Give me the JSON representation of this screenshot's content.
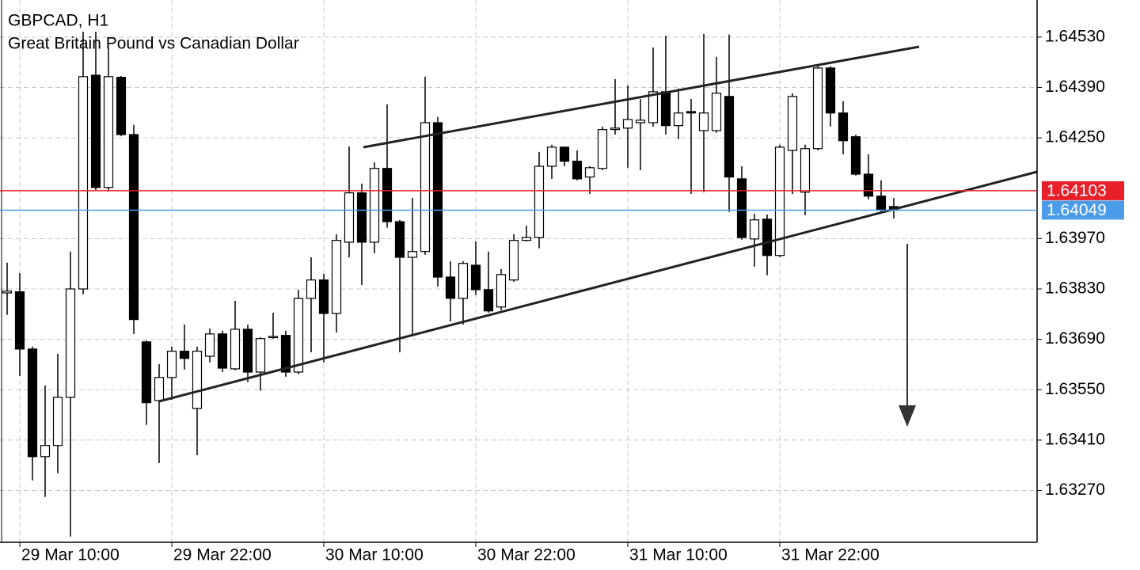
{
  "chart_data": {
    "type": "candlestick",
    "title": "GBPCAD, H1",
    "subtitle": "Great Britain Pound vs Canadian Dollar",
    "categories": [
      null,
      "29 Mar 10:00",
      null,
      null,
      null,
      null,
      null,
      null,
      null,
      null,
      null,
      null,
      null,
      "29 Mar 22:00",
      null,
      null,
      null,
      null,
      null,
      null,
      null,
      null,
      null,
      null,
      null,
      "30 Mar 10:00",
      null,
      null,
      null,
      null,
      null,
      null,
      null,
      null,
      null,
      null,
      null,
      "30 Mar 22:00",
      null,
      null,
      null,
      null,
      null,
      null,
      null,
      null,
      null,
      null,
      null,
      "31 Mar 10:00",
      null,
      null,
      null,
      null,
      null,
      null,
      null,
      null,
      null,
      null,
      null,
      "31 Mar 22:00",
      null,
      null,
      null,
      null,
      null,
      null,
      null,
      null,
      null
    ],
    "open": [
      1.63819,
      1.63822,
      1.63663,
      1.63364,
      1.63395,
      1.63529,
      1.6383,
      1.64424,
      1.64112,
      1.64418,
      1.64259,
      1.63683,
      1.6352,
      1.63584,
      1.63657,
      1.63498,
      1.63643,
      1.63705,
      1.63608,
      1.63718,
      1.63599,
      1.63696,
      1.63701,
      1.63599,
      1.63804,
      1.63855,
      1.63762,
      1.6396,
      1.64097,
      1.6396,
      1.64165,
      1.64017,
      1.63918,
      1.63934,
      1.64292,
      1.63863,
      1.63804,
      1.63896,
      1.63828,
      1.6378,
      1.63855,
      1.63965,
      1.63973,
      1.64171,
      1.64224,
      1.64185,
      1.64141,
      1.64165,
      1.64273,
      1.64277,
      1.64292,
      1.64292,
      1.64378,
      1.64284,
      1.64323,
      1.6427,
      1.6427,
      1.64365,
      1.64136,
      1.63969,
      1.64024,
      1.63923,
      1.64215,
      1.64099,
      1.6422,
      1.64444,
      1.64319,
      1.64253,
      1.64149,
      1.64088,
      1.64059
    ],
    "high": [
      1.63903,
      1.63874,
      1.6367,
      1.63562,
      1.6365,
      1.63934,
      1.64545,
      1.64545,
      1.64501,
      1.64422,
      1.64286,
      1.63687,
      1.63621,
      1.6367,
      1.63731,
      1.6367,
      1.6372,
      1.63714,
      1.63797,
      1.63731,
      1.63696,
      1.63764,
      1.63714,
      1.63828,
      1.63918,
      1.63872,
      1.63982,
      1.64226,
      1.64123,
      1.64182,
      1.64343,
      1.64022,
      1.64083,
      1.6442,
      1.64308,
      1.63907,
      1.63907,
      1.63962,
      1.63934,
      1.63885,
      1.63982,
      1.64006,
      1.64211,
      1.64231,
      1.64226,
      1.64215,
      1.64171,
      1.64281,
      1.64413,
      1.64396,
      1.64358,
      1.64501,
      1.64534,
      1.64387,
      1.64358,
      1.64539,
      1.64475,
      1.64537,
      1.64171,
      1.64039,
      1.64037,
      1.64231,
      1.64374,
      1.64231,
      1.64453,
      1.64449,
      1.64352,
      1.64259,
      1.64204,
      1.64132,
      1.64083
    ],
    "low": [
      1.63758,
      1.63588,
      1.63298,
      1.63252,
      1.63318,
      1.63142,
      1.63815,
      1.64105,
      1.64101,
      1.64255,
      1.63705,
      1.63452,
      1.63346,
      1.63522,
      1.63606,
      1.63368,
      1.63626,
      1.63599,
      1.63604,
      1.63571,
      1.63547,
      1.63692,
      1.63586,
      1.63593,
      1.63654,
      1.63626,
      1.63709,
      1.63918,
      1.63841,
      1.63929,
      1.64,
      1.63654,
      1.63698,
      1.63925,
      1.63837,
      1.6374,
      1.63731,
      1.63813,
      1.63764,
      1.63771,
      1.6385,
      1.63962,
      1.63943,
      1.64136,
      1.64171,
      1.64132,
      1.64094,
      1.6416,
      1.64259,
      1.64167,
      1.6416,
      1.64281,
      1.64259,
      1.64246,
      1.64094,
      1.64099,
      1.64264,
      1.64044,
      1.63967,
      1.63892,
      1.63868,
      1.63918,
      1.64094,
      1.64035,
      1.64215,
      1.64281,
      1.64204,
      1.64145,
      1.64079,
      1.64039,
      1.64026
    ],
    "close": [
      1.63824,
      1.63663,
      1.63364,
      1.63395,
      1.63529,
      1.6383,
      1.6442,
      1.64112,
      1.6442,
      1.64259,
      1.63745,
      1.63514,
      1.63584,
      1.63657,
      1.63637,
      1.63657,
      1.63705,
      1.6361,
      1.63718,
      1.63599,
      1.63692,
      1.63698,
      1.63599,
      1.63804,
      1.63855,
      1.63762,
      1.63965,
      1.64097,
      1.6396,
      1.64165,
      1.64017,
      1.63918,
      1.63934,
      1.64292,
      1.63863,
      1.63804,
      1.63901,
      1.63828,
      1.63769,
      1.6387,
      1.63965,
      1.63973,
      1.64171,
      1.64224,
      1.64185,
      1.64136,
      1.64167,
      1.64273,
      1.64277,
      1.64301,
      1.64299,
      1.64378,
      1.64284,
      1.64319,
      1.64319,
      1.64319,
      1.64374,
      1.64141,
      1.63973,
      1.64022,
      1.63923,
      1.64224,
      1.64365,
      1.6422,
      1.64444,
      1.64319,
      1.64242,
      1.64149,
      1.64088,
      1.6405,
      1.64049
    ],
    "up_color": "#ffffff",
    "down_color": "#000000",
    "ylim": [
      1.63126,
      1.64633
    ],
    "yticks": [
      {
        "value": 1.6453,
        "label": "1.64530"
      },
      {
        "value": 1.6439,
        "label": "1.64390"
      },
      {
        "value": 1.6425,
        "label": "1.64250"
      },
      {
        "value": 1.6397,
        "label": "1.63970"
      },
      {
        "value": 1.6383,
        "label": "1.63830"
      },
      {
        "value": 1.6369,
        "label": "1.63690"
      },
      {
        "value": 1.6355,
        "label": "1.63550"
      },
      {
        "value": 1.6341,
        "label": "1.63410"
      },
      {
        "value": 1.6327,
        "label": "1.63270"
      }
    ],
    "price_lines": [
      {
        "value": 1.64103,
        "color": "#e8202a"
      },
      {
        "value": 1.64049,
        "color": "#4a9be8"
      }
    ],
    "grid": true
  }
}
